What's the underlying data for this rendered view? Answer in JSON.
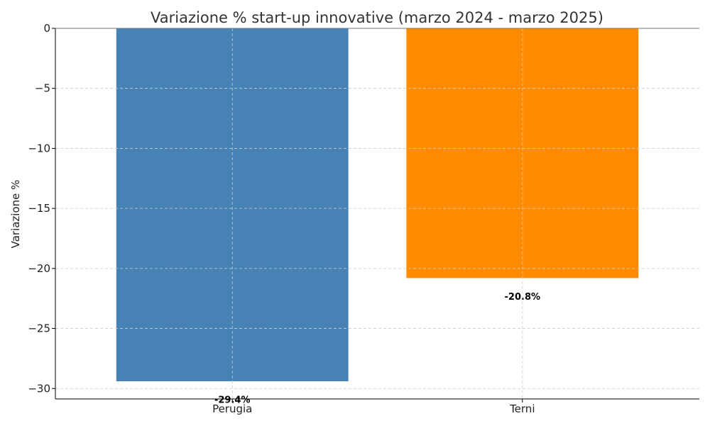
{
  "chart_data": {
    "type": "bar",
    "title": "Variazione % start-up innovative (marzo 2024 - marzo 2025)",
    "xlabel": "",
    "ylabel": "Variazione %",
    "categories": [
      "Perugia",
      "Terni"
    ],
    "values": [
      -29.4,
      -20.8
    ],
    "value_labels": [
      "-29.4%",
      "-20.8%"
    ],
    "colors": [
      "#4682b4",
      "#ff8c00"
    ],
    "ylim": [
      -30.87,
      0
    ],
    "yticks": [
      0,
      -5,
      -10,
      -15,
      -20,
      -25,
      -30
    ],
    "ytick_labels": [
      "0",
      "−5",
      "−10",
      "−15",
      "−20",
      "−25",
      "−30"
    ],
    "grid": true,
    "legend": "none"
  }
}
